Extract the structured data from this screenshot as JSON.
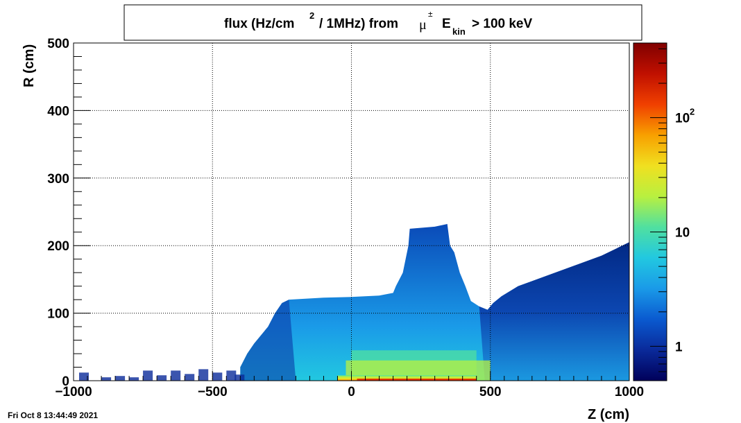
{
  "chart_data": {
    "type": "heatmap",
    "title": {
      "prefix": "flux (Hz/cm",
      "sup": "2",
      "middle": "/ 1MHz) from",
      "particle": "μ",
      "particle_sup": "±",
      "e": "E",
      "e_sub": "kin",
      "suffix": "> 100 keV"
    },
    "xlabel": "Z (cm)",
    "ylabel": "R (cm)",
    "xlim": [
      -1000,
      1000
    ],
    "ylim": [
      0,
      500
    ],
    "x_ticks": [
      {
        "value": -1000,
        "label": "−1000"
      },
      {
        "value": -500,
        "label": "−500"
      },
      {
        "value": 0,
        "label": "0"
      },
      {
        "value": 500,
        "label": "500"
      },
      {
        "value": 1000,
        "label": "1000"
      }
    ],
    "y_ticks": [
      {
        "value": 0,
        "label": "0"
      },
      {
        "value": 100,
        "label": "100"
      },
      {
        "value": 200,
        "label": "200"
      },
      {
        "value": 300,
        "label": "300"
      },
      {
        "value": 400,
        "label": "400"
      },
      {
        "value": 500,
        "label": "500"
      }
    ],
    "grid": true,
    "colorbar": {
      "scale": "log",
      "range": [
        0.5,
        450
      ],
      "ticks": [
        {
          "value": 1,
          "base": "1",
          "sup": ""
        },
        {
          "value": 10,
          "base": "10",
          "sup": ""
        },
        {
          "value": 100,
          "base": "10",
          "sup": "2"
        }
      ],
      "palette": [
        "#00005a",
        "#0a2a9a",
        "#0a5ad0",
        "#1a9ae8",
        "#22c8e0",
        "#50e0a0",
        "#b8f040",
        "#f0e020",
        "#f8a000",
        "#f04000",
        "#c01000",
        "#800000"
      ]
    },
    "envelope": {
      "description_points": "upper R boundary of non-empty region as [Z, R] pairs",
      "points": [
        [
          -400,
          20
        ],
        [
          -375,
          40
        ],
        [
          -350,
          55
        ],
        [
          -300,
          80
        ],
        [
          -275,
          100
        ],
        [
          -250,
          115
        ],
        [
          -225,
          120
        ],
        [
          -100,
          123
        ],
        [
          0,
          124
        ],
        [
          100,
          126
        ],
        [
          150,
          130
        ],
        [
          160,
          140
        ],
        [
          185,
          160
        ],
        [
          205,
          200
        ],
        [
          210,
          225
        ],
        [
          300,
          228
        ],
        [
          345,
          232
        ],
        [
          355,
          200
        ],
        [
          370,
          190
        ],
        [
          390,
          160
        ],
        [
          410,
          140
        ],
        [
          430,
          118
        ],
        [
          460,
          110
        ],
        [
          490,
          105
        ],
        [
          510,
          115
        ],
        [
          540,
          125
        ],
        [
          600,
          140
        ],
        [
          700,
          155
        ],
        [
          800,
          170
        ],
        [
          900,
          185
        ],
        [
          1000,
          205
        ]
      ],
      "sparse_low_points": [
        [
          -980,
          12
        ],
        [
          -900,
          5
        ],
        [
          -850,
          7
        ],
        [
          -800,
          5
        ],
        [
          -750,
          15
        ],
        [
          -700,
          8
        ],
        [
          -650,
          15
        ],
        [
          -600,
          10
        ],
        [
          -550,
          17
        ],
        [
          -500,
          12
        ],
        [
          -450,
          15
        ],
        [
          -420,
          9
        ]
      ]
    },
    "intensity_bands": [
      {
        "r_max": 8,
        "z_from": -50,
        "z_to": 450,
        "value": 200
      },
      {
        "r_max": 30,
        "z_from": -20,
        "z_to": 500,
        "value": 35
      },
      {
        "r_max": 45,
        "z_from": 0,
        "z_to": 450,
        "value": 15
      }
    ]
  },
  "footer": {
    "timestamp": "Fri Oct  8 13:44:49 2021"
  }
}
